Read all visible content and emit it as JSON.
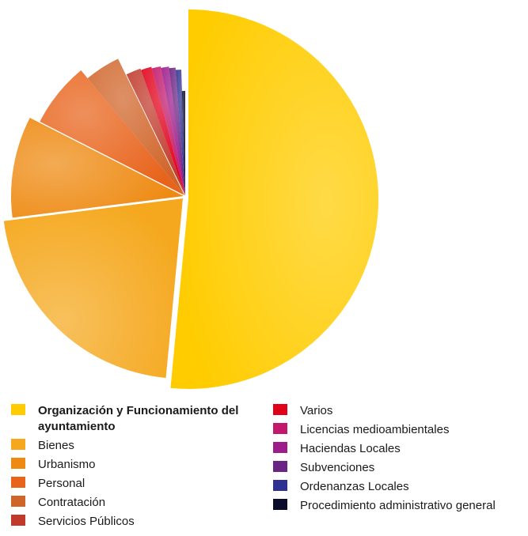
{
  "chart_data": {
    "type": "pie",
    "title": "",
    "slices": [
      {
        "label": "Organización y Funcionamiento del ayuntamiento",
        "value": 51.5,
        "color": "#FFCC00",
        "emphasis": true
      },
      {
        "label": "Bienes",
        "value": 21.5,
        "color": "#F5A81E"
      },
      {
        "label": "Urbanismo",
        "value": 9.5,
        "color": "#EE8A12"
      },
      {
        "label": "Personal",
        "value": 6.5,
        "color": "#E8641C"
      },
      {
        "label": "Contratación",
        "value": 3.8,
        "color": "#D0652A"
      },
      {
        "label": "Servicios Públicos",
        "value": 1.8,
        "color": "#C0392B"
      },
      {
        "label": "Varios",
        "value": 1.3,
        "color": "#E1001A"
      },
      {
        "label": "Licencias medioambientales",
        "value": 1.1,
        "color": "#C2186B"
      },
      {
        "label": "Haciendas Locales",
        "value": 1.0,
        "color": "#9C1C8C"
      },
      {
        "label": "Subvenciones",
        "value": 0.8,
        "color": "#6A2483"
      },
      {
        "label": "Ordenanzas Locales",
        "value": 0.7,
        "color": "#2E3192"
      },
      {
        "label": "Procedimiento administrativo general",
        "value": 0.5,
        "color": "#0B0B2B"
      }
    ],
    "legend_placement": "bottom"
  },
  "legend": {
    "left": [
      {
        "label": "Organización y Funcionamiento del ayuntamiento",
        "color": "#FFCC00",
        "bold": true
      },
      {
        "label": "Bienes",
        "color": "#F5A81E"
      },
      {
        "label": "Urbanismo",
        "color": "#EE8A12"
      },
      {
        "label": "Personal",
        "color": "#E8641C"
      },
      {
        "label": "Contratación",
        "color": "#D0652A"
      },
      {
        "label": "Servicios Públicos",
        "color": "#C0392B"
      }
    ],
    "right": [
      {
        "label": "Varios",
        "color": "#E1001A"
      },
      {
        "label": "Licencias medioambientales",
        "color": "#C2186B"
      },
      {
        "label": "Haciendas Locales",
        "color": "#9C1C8C"
      },
      {
        "label": "Subvenciones",
        "color": "#6A2483"
      },
      {
        "label": "Ordenanzas Locales",
        "color": "#2E3192"
      },
      {
        "label": "Procedimiento administrativo general",
        "color": "#0B0B2B"
      }
    ]
  }
}
